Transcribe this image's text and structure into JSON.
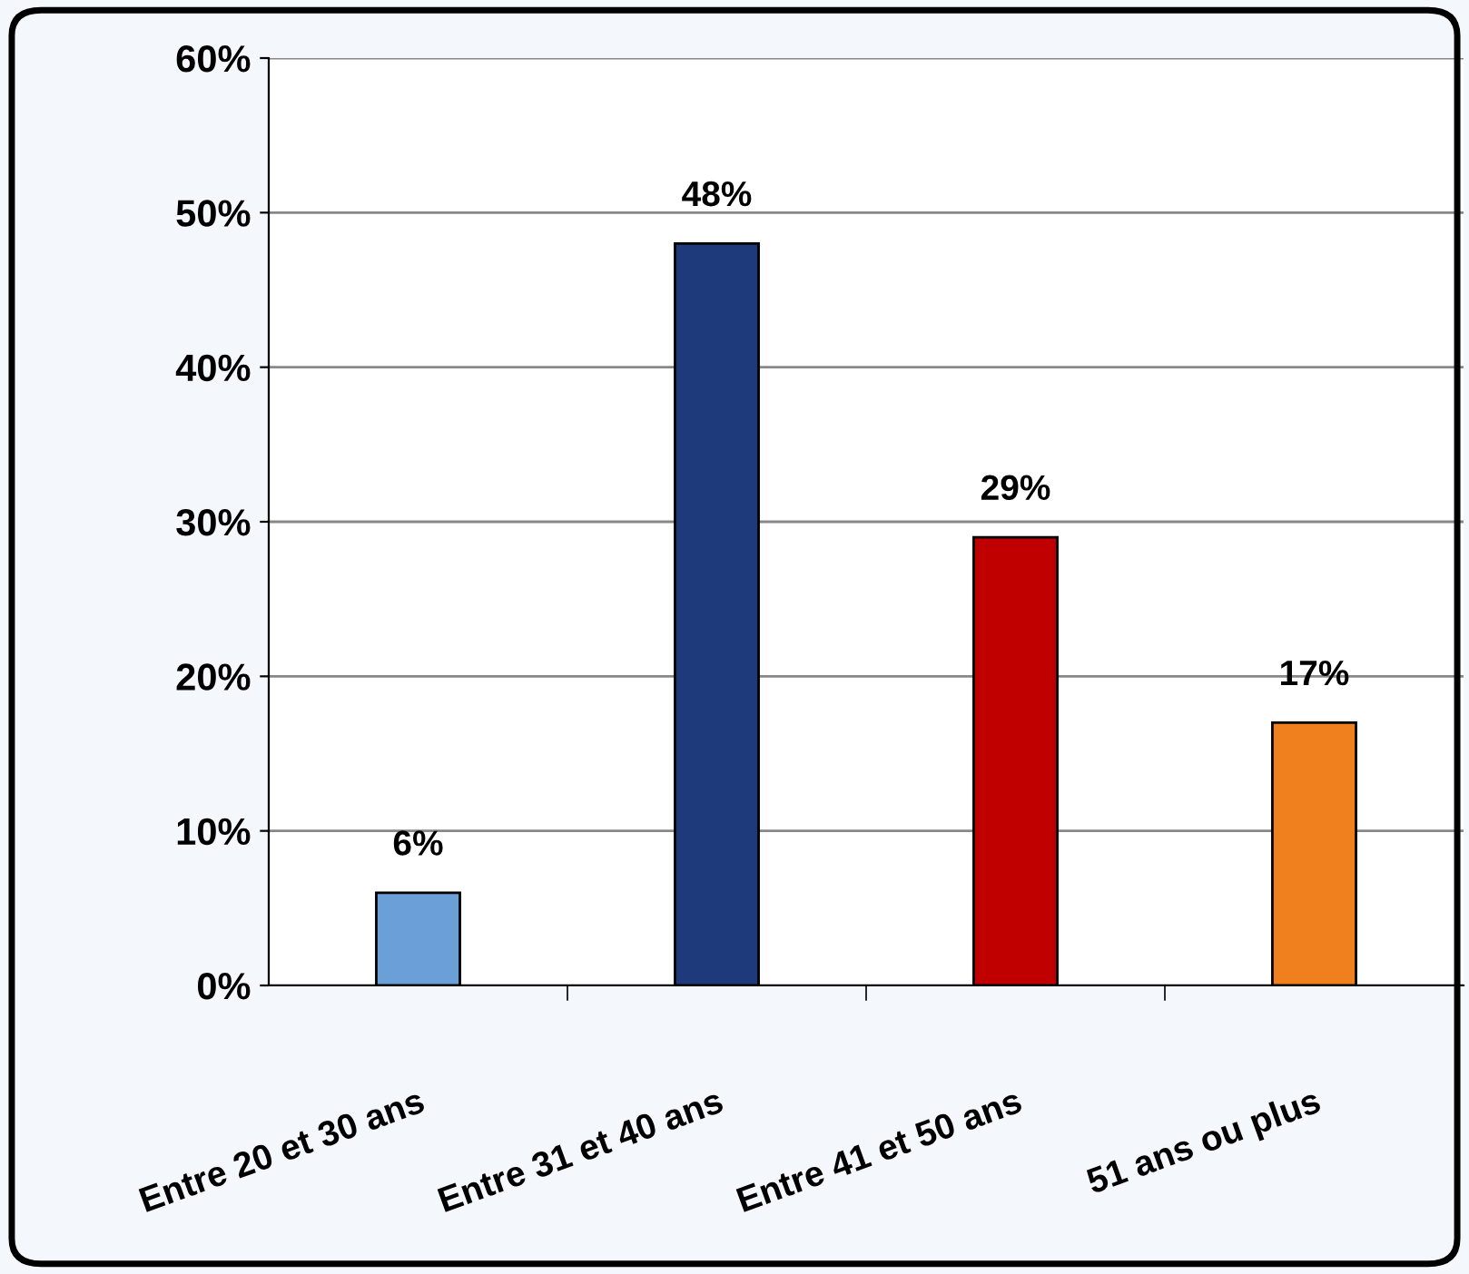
{
  "chart_data": {
    "type": "bar",
    "categories": [
      "Entre 20 et 30 ans",
      "Entre 31 et 40 ans",
      "Entre 41 et 50 ans",
      "51 ans ou plus"
    ],
    "values": [
      6,
      48,
      29,
      17
    ],
    "colors": [
      "#6a9fd8",
      "#1f3a7a",
      "#c00000",
      "#f0801e"
    ],
    "value_labels": [
      "6%",
      "48%",
      "29%",
      "17%"
    ],
    "ylim": [
      0,
      60
    ],
    "yticks": [
      {
        "value": 0,
        "label": "0%"
      },
      {
        "value": 10,
        "label": "10%"
      },
      {
        "value": 20,
        "label": "20%"
      },
      {
        "value": 30,
        "label": "30%"
      },
      {
        "value": 40,
        "label": "40%"
      },
      {
        "value": 50,
        "label": "50%"
      },
      {
        "value": 60,
        "label": "60%"
      }
    ],
    "grid": "y"
  }
}
